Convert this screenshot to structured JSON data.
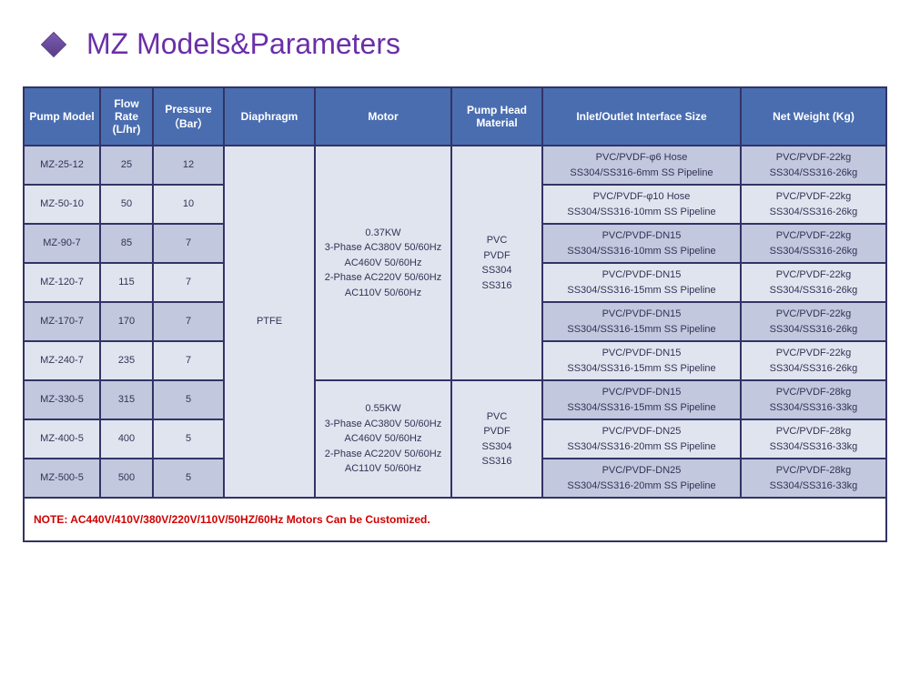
{
  "title": "MZ Models&Parameters",
  "headers": {
    "c1": "Pump Model",
    "c2": "Flow Rate (L/hr)",
    "c3": "Pressure（Bar）",
    "c4": "Diaphragm",
    "c5": "Motor",
    "c6": "Pump Head Material",
    "c7": "Inlet/Outlet Interface Size",
    "c8": "Net Weight (Kg)"
  },
  "diaphragm": "PTFE",
  "motor1": "0.37KW\n3-Phase AC380V 50/60Hz AC460V 50/60Hz\n2-Phase AC220V 50/60Hz AC110V 50/60Hz",
  "motor2": "0.55KW\n3-Phase AC380V 50/60Hz AC460V 50/60Hz\n2-Phase AC220V 50/60Hz AC110V 50/60Hz",
  "head1": "PVC\nPVDF\nSS304\nSS316",
  "head2": "PVC\nPVDF\nSS304\nSS316",
  "rows": [
    {
      "model": "MZ-25-12",
      "flow": "25",
      "press": "12",
      "io": "PVC/PVDF-φ6 Hose\nSS304/SS316-6mm SS Pipeline",
      "wt": "PVC/PVDF-22kg\nSS304/SS316-26kg"
    },
    {
      "model": "MZ-50-10",
      "flow": "50",
      "press": "10",
      "io": "PVC/PVDF-φ10 Hose\nSS304/SS316-10mm SS Pipeline",
      "wt": "PVC/PVDF-22kg\nSS304/SS316-26kg"
    },
    {
      "model": "MZ-90-7",
      "flow": "85",
      "press": "7",
      "io": "PVC/PVDF-DN15\nSS304/SS316-10mm SS Pipeline",
      "wt": "PVC/PVDF-22kg\nSS304/SS316-26kg"
    },
    {
      "model": "MZ-120-7",
      "flow": "115",
      "press": "7",
      "io": "PVC/PVDF-DN15\nSS304/SS316-15mm SS Pipeline",
      "wt": "PVC/PVDF-22kg\nSS304/SS316-26kg"
    },
    {
      "model": "MZ-170-7",
      "flow": "170",
      "press": "7",
      "io": "PVC/PVDF-DN15\nSS304/SS316-15mm SS Pipeline",
      "wt": "PVC/PVDF-22kg\nSS304/SS316-26kg"
    },
    {
      "model": "MZ-240-7",
      "flow": "235",
      "press": "7",
      "io": "PVC/PVDF-DN15\nSS304/SS316-15mm SS Pipeline",
      "wt": "PVC/PVDF-22kg\nSS304/SS316-26kg"
    },
    {
      "model": "MZ-330-5",
      "flow": "315",
      "press": "5",
      "io": "PVC/PVDF-DN15\nSS304/SS316-15mm SS Pipeline",
      "wt": "PVC/PVDF-28kg\nSS304/SS316-33kg"
    },
    {
      "model": "MZ-400-5",
      "flow": "400",
      "press": "5",
      "io": "PVC/PVDF-DN25\nSS304/SS316-20mm SS Pipeline",
      "wt": "PVC/PVDF-28kg\nSS304/SS316-33kg"
    },
    {
      "model": "MZ-500-5",
      "flow": "500",
      "press": "5",
      "io": "PVC/PVDF-DN25\nSS304/SS316-20mm SS Pipeline",
      "wt": "PVC/PVDF-28kg\nSS304/SS316-33kg"
    }
  ],
  "note": "NOTE: AC440V/410V/380V/220V/110V/50HZ/60Hz Motors Can be Customized."
}
